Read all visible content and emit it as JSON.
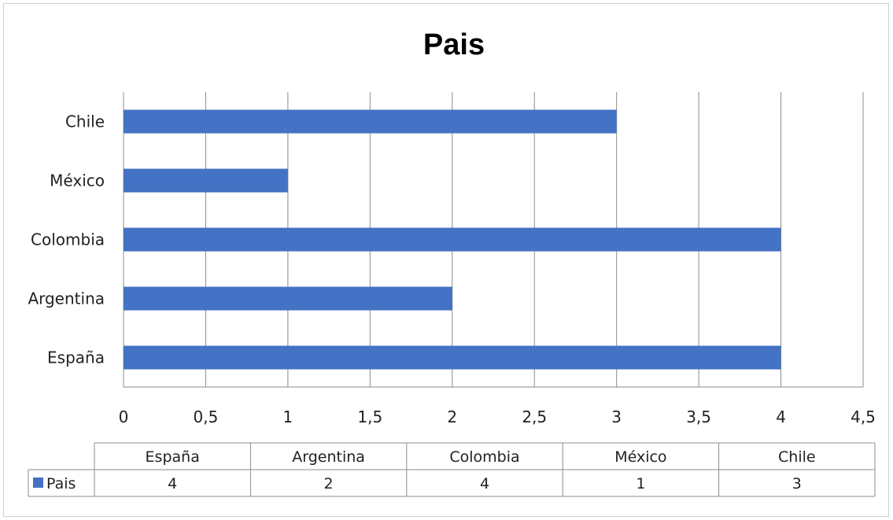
{
  "chart_data": {
    "type": "bar",
    "orientation": "horizontal",
    "title": "Pais",
    "categories": [
      "España",
      "Argentina",
      "Colombia",
      "México",
      "Chile"
    ],
    "series": [
      {
        "name": "Pais",
        "values": [
          4,
          2,
          4,
          1,
          3
        ],
        "color": "#4472C4"
      }
    ],
    "xlim": [
      0,
      4.5
    ],
    "x_ticks": [
      "0",
      "0,5",
      "1",
      "1,5",
      "2",
      "2,5",
      "3",
      "3,5",
      "4",
      "4,5"
    ],
    "grid": "vertical",
    "data_table": true
  }
}
